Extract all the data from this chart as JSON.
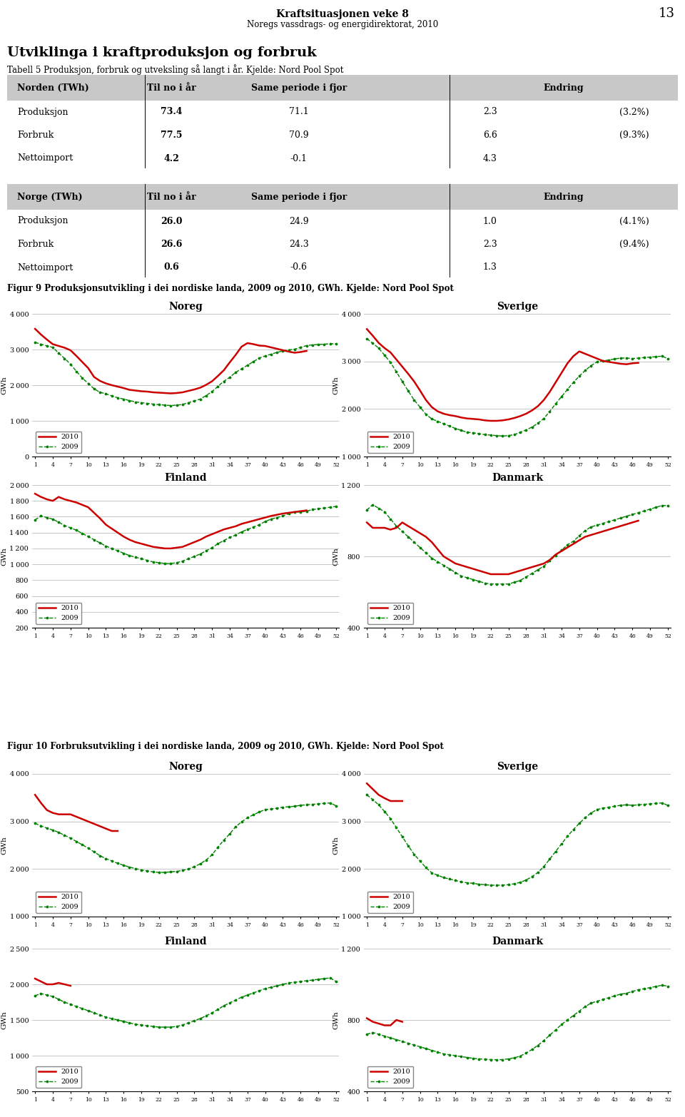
{
  "page_title": "Kraftsituasjonen veke 8",
  "page_subtitle": "Noregs vassdrags- og energidirektorat, 2010",
  "page_number": "13",
  "section_title": "Utviklinga i kraftproduksjon og forbruk",
  "section_subtitle": "Tabell 5 Produksjon, forbruk og utveksling så langt i år. Kjelde: Nord Pool Spot",
  "table1_rows": [
    [
      "Produksjon",
      "73.4",
      "71.1",
      "2.3",
      "(3.2%)"
    ],
    [
      "Forbruk",
      "77.5",
      "70.9",
      "6.6",
      "(9.3%)"
    ],
    [
      "Nettoimport",
      "4.2",
      "-0.1",
      "4.3",
      ""
    ]
  ],
  "table2_rows": [
    [
      "Produksjon",
      "26.0",
      "24.9",
      "1.0",
      "(4.1%)"
    ],
    [
      "Forbruk",
      "26.6",
      "24.3",
      "2.3",
      "(9.4%)"
    ],
    [
      "Nettoimport",
      "0.6",
      "-0.6",
      "1.3",
      ""
    ]
  ],
  "fig9_caption": "Figur 9 Produksjonsutvikling i dei nordiske landa, 2009 og 2010, GWh. Kjelde: Nord Pool Spot",
  "fig10_caption": "Figur 10 Forbruksutvikling i dei nordiske landa, 2009 og 2010, GWh. Kjelde: Nord Pool Spot",
  "x_ticks": [
    1,
    4,
    7,
    10,
    13,
    16,
    19,
    22,
    25,
    28,
    31,
    34,
    37,
    40,
    43,
    46,
    49,
    52
  ],
  "color_2010": "#cc0000",
  "color_2009": "#008000",
  "fig9_noreg_2010": [
    3580,
    3420,
    3280,
    3150,
    3100,
    3050,
    2980,
    2820,
    2650,
    2480,
    2230,
    2120,
    2050,
    2000,
    1960,
    1920,
    1870,
    1850,
    1830,
    1820,
    1800,
    1790,
    1780,
    1770,
    1780,
    1800,
    1840,
    1880,
    1930,
    2010,
    2110,
    2260,
    2420,
    2640,
    2850,
    3080,
    3180,
    3150,
    3110,
    3100,
    3060,
    3020,
    2980,
    2940,
    2910,
    2930,
    2960,
    null,
    null,
    null,
    null,
    null
  ],
  "fig9_noreg_2009": [
    3200,
    3150,
    3100,
    3060,
    2900,
    2750,
    2590,
    2390,
    2200,
    2050,
    1900,
    1800,
    1760,
    1700,
    1650,
    1610,
    1570,
    1530,
    1510,
    1490,
    1470,
    1455,
    1440,
    1430,
    1440,
    1460,
    1510,
    1560,
    1610,
    1710,
    1820,
    1970,
    2110,
    2220,
    2360,
    2460,
    2560,
    2660,
    2760,
    2820,
    2870,
    2920,
    2960,
    2990,
    3010,
    3060,
    3110,
    3130,
    3140,
    3150,
    3160,
    3160
  ],
  "fig9_sverige_2010": [
    3680,
    3540,
    3390,
    3280,
    3190,
    3040,
    2890,
    2740,
    2580,
    2390,
    2190,
    2040,
    1950,
    1900,
    1870,
    1850,
    1820,
    1800,
    1790,
    1780,
    1760,
    1750,
    1750,
    1760,
    1780,
    1810,
    1850,
    1900,
    1970,
    2060,
    2190,
    2360,
    2560,
    2760,
    2960,
    3110,
    3210,
    3160,
    3110,
    3060,
    3010,
    2990,
    2970,
    2950,
    2940,
    2960,
    2970,
    null,
    null,
    null,
    null,
    null
  ],
  "fig9_sverige_2009": [
    3480,
    3380,
    3280,
    3130,
    2980,
    2780,
    2580,
    2380,
    2190,
    2040,
    1890,
    1790,
    1740,
    1690,
    1640,
    1590,
    1550,
    1510,
    1500,
    1480,
    1460,
    1450,
    1440,
    1430,
    1440,
    1460,
    1510,
    1560,
    1620,
    1700,
    1800,
    1950,
    2110,
    2260,
    2410,
    2560,
    2690,
    2810,
    2910,
    2990,
    3010,
    3030,
    3050,
    3070,
    3070,
    3060,
    3070,
    3080,
    3090,
    3100,
    3110,
    3060
  ],
  "fig9_finland_2010": [
    1890,
    1850,
    1820,
    1800,
    1850,
    1820,
    1800,
    1780,
    1750,
    1720,
    1650,
    1580,
    1500,
    1450,
    1400,
    1350,
    1310,
    1280,
    1260,
    1240,
    1220,
    1210,
    1200,
    1200,
    1210,
    1220,
    1250,
    1280,
    1310,
    1350,
    1380,
    1410,
    1440,
    1460,
    1480,
    1510,
    1530,
    1550,
    1570,
    1590,
    1610,
    1625,
    1640,
    1650,
    1660,
    1670,
    1680,
    null,
    null,
    null,
    null,
    null
  ],
  "fig9_finland_2009": [
    1560,
    1610,
    1590,
    1570,
    1530,
    1490,
    1460,
    1430,
    1390,
    1350,
    1310,
    1270,
    1230,
    1200,
    1170,
    1140,
    1110,
    1090,
    1070,
    1050,
    1030,
    1020,
    1010,
    1010,
    1020,
    1040,
    1070,
    1100,
    1130,
    1170,
    1210,
    1260,
    1300,
    1340,
    1370,
    1410,
    1440,
    1470,
    1500,
    1540,
    1570,
    1590,
    1610,
    1640,
    1660,
    1660,
    1670,
    1690,
    1700,
    1710,
    1720,
    1730
  ],
  "fig9_danmark_2010": [
    990,
    960,
    960,
    960,
    950,
    960,
    990,
    970,
    950,
    930,
    910,
    880,
    840,
    800,
    780,
    760,
    750,
    740,
    730,
    720,
    710,
    700,
    700,
    700,
    700,
    710,
    720,
    730,
    740,
    750,
    760,
    780,
    810,
    830,
    850,
    870,
    890,
    910,
    920,
    930,
    940,
    950,
    960,
    970,
    980,
    990,
    1000,
    null,
    null,
    null,
    null,
    null
  ],
  "fig9_danmark_2009": [
    1060,
    1090,
    1070,
    1050,
    1010,
    970,
    940,
    910,
    880,
    850,
    820,
    790,
    770,
    750,
    730,
    710,
    690,
    680,
    670,
    660,
    650,
    645,
    645,
    645,
    645,
    655,
    665,
    685,
    705,
    725,
    745,
    775,
    805,
    835,
    865,
    885,
    915,
    945,
    965,
    975,
    985,
    995,
    1005,
    1015,
    1025,
    1035,
    1045,
    1055,
    1065,
    1075,
    1085,
    1085
  ],
  "fig10_noreg_2010": [
    3560,
    3390,
    3240,
    3180,
    3150,
    3150,
    3150,
    3100,
    3050,
    3000,
    2950,
    2900,
    2850,
    2800,
    2800,
    null,
    null,
    null,
    null,
    null,
    null,
    null,
    null,
    null,
    null,
    null,
    null,
    null,
    null,
    null,
    null,
    null,
    null,
    null,
    null,
    null,
    null,
    null,
    null,
    null,
    null,
    null,
    null,
    null,
    null,
    null,
    null,
    null,
    null,
    null,
    null,
    null
  ],
  "fig10_noreg_2009": [
    2960,
    2910,
    2860,
    2820,
    2770,
    2710,
    2650,
    2580,
    2510,
    2440,
    2360,
    2280,
    2220,
    2170,
    2120,
    2080,
    2040,
    2010,
    1980,
    1960,
    1940,
    1930,
    1930,
    1940,
    1950,
    1970,
    2000,
    2050,
    2110,
    2190,
    2300,
    2460,
    2610,
    2740,
    2890,
    2990,
    3080,
    3140,
    3200,
    3250,
    3260,
    3280,
    3300,
    3310,
    3320,
    3340,
    3350,
    3360,
    3370,
    3380,
    3390,
    3330
  ],
  "fig10_sverige_2010": [
    3800,
    3680,
    3560,
    3490,
    3430,
    3430,
    3430,
    null,
    null,
    null,
    null,
    null,
    null,
    null,
    null,
    null,
    null,
    null,
    null,
    null,
    null,
    null,
    null,
    null,
    null,
    null,
    null,
    null,
    null,
    null,
    null,
    null,
    null,
    null,
    null,
    null,
    null,
    null,
    null,
    null,
    null,
    null,
    null,
    null,
    null,
    null,
    null,
    null,
    null,
    null,
    null,
    null
  ],
  "fig10_sverige_2009": [
    3560,
    3460,
    3350,
    3210,
    3060,
    2870,
    2680,
    2490,
    2310,
    2170,
    2030,
    1920,
    1870,
    1820,
    1790,
    1760,
    1730,
    1710,
    1700,
    1680,
    1670,
    1660,
    1660,
    1660,
    1670,
    1690,
    1720,
    1770,
    1840,
    1930,
    2050,
    2210,
    2370,
    2530,
    2690,
    2830,
    2960,
    3080,
    3180,
    3250,
    3280,
    3300,
    3320,
    3340,
    3350,
    3340,
    3350,
    3360,
    3370,
    3380,
    3390,
    3340
  ],
  "fig10_finland_2010": [
    2080,
    2040,
    2000,
    2000,
    2020,
    2000,
    1980,
    null,
    null,
    null,
    null,
    null,
    null,
    null,
    null,
    null,
    null,
    null,
    null,
    null,
    null,
    null,
    null,
    null,
    null,
    null,
    null,
    null,
    null,
    null,
    null,
    null,
    null,
    null,
    null,
    null,
    null,
    null,
    null,
    null,
    null,
    null,
    null,
    null,
    null,
    null,
    null,
    null,
    null,
    null,
    null,
    null
  ],
  "fig10_finland_2009": [
    1840,
    1870,
    1850,
    1830,
    1790,
    1750,
    1720,
    1690,
    1660,
    1630,
    1600,
    1570,
    1540,
    1520,
    1500,
    1480,
    1460,
    1440,
    1430,
    1420,
    1410,
    1400,
    1400,
    1400,
    1410,
    1430,
    1460,
    1490,
    1520,
    1560,
    1600,
    1650,
    1700,
    1740,
    1780,
    1820,
    1850,
    1880,
    1910,
    1940,
    1960,
    1980,
    2000,
    2020,
    2030,
    2040,
    2050,
    2060,
    2070,
    2080,
    2090,
    2040
  ],
  "fig10_danmark_2010": [
    810,
    790,
    780,
    770,
    770,
    800,
    790,
    null,
    null,
    null,
    null,
    null,
    null,
    null,
    null,
    null,
    null,
    null,
    null,
    null,
    null,
    null,
    null,
    null,
    null,
    null,
    null,
    null,
    null,
    null,
    null,
    null,
    null,
    null,
    null,
    null,
    null,
    null,
    null,
    null,
    null,
    null,
    null,
    null,
    null,
    null,
    null,
    null,
    null,
    null,
    null,
    null
  ],
  "fig10_danmark_2009": [
    720,
    730,
    720,
    710,
    700,
    690,
    680,
    670,
    660,
    650,
    640,
    630,
    620,
    610,
    605,
    600,
    595,
    590,
    585,
    582,
    580,
    578,
    577,
    578,
    582,
    588,
    598,
    615,
    635,
    658,
    685,
    715,
    745,
    775,
    800,
    825,
    850,
    875,
    895,
    905,
    915,
    925,
    935,
    945,
    950,
    960,
    970,
    975,
    982,
    988,
    995,
    990
  ],
  "header_gray": "#c8c8c8"
}
